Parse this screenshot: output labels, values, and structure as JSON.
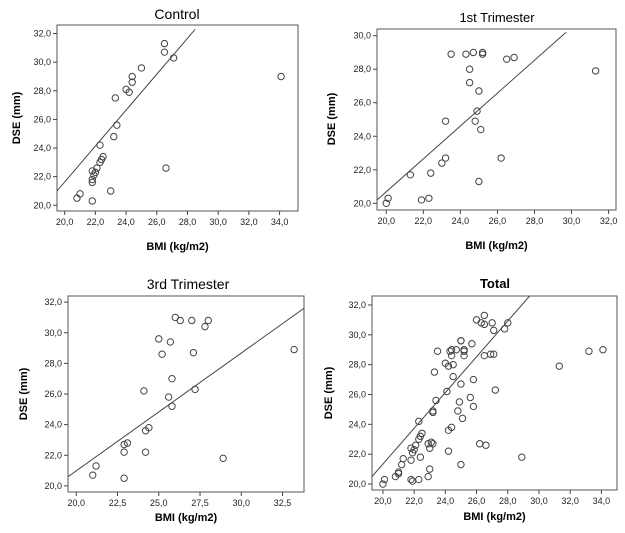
{
  "chart_data": [
    {
      "type": "scatter",
      "title": "Control",
      "xlabel": "BMI (kg/m2)",
      "ylabel": "DSE (mm)",
      "xlim": [
        19.5,
        35.2
      ],
      "ylim": [
        19.6,
        32.6
      ],
      "xticks": [
        "20,0",
        "22,0",
        "24,0",
        "26,0",
        "28,0",
        "30,0",
        "32,0",
        "34,0"
      ],
      "yticks": [
        "20,0",
        "22,0",
        "24,0",
        "26,0",
        "28,0",
        "30,0",
        "32,0"
      ],
      "fit_line": {
        "x": [
          19.5,
          28.5
        ],
        "y": [
          21.0,
          32.3
        ]
      },
      "points": [
        [
          20.8,
          20.5
        ],
        [
          21.0,
          20.8
        ],
        [
          21.8,
          20.3
        ],
        [
          21.8,
          21.6
        ],
        [
          21.8,
          21.8
        ],
        [
          21.9,
          22.1
        ],
        [
          21.8,
          22.4
        ],
        [
          22.0,
          22.3
        ],
        [
          22.1,
          22.6
        ],
        [
          22.3,
          23.0
        ],
        [
          22.4,
          23.2
        ],
        [
          22.5,
          23.4
        ],
        [
          22.3,
          24.2
        ],
        [
          23.0,
          21.0
        ],
        [
          23.2,
          24.8
        ],
        [
          23.4,
          25.6
        ],
        [
          23.3,
          27.5
        ],
        [
          24.0,
          28.1
        ],
        [
          24.2,
          27.9
        ],
        [
          24.4,
          28.6
        ],
        [
          24.4,
          29.0
        ],
        [
          25.0,
          29.6
        ],
        [
          26.5,
          31.3
        ],
        [
          26.5,
          30.7
        ],
        [
          27.1,
          30.3
        ],
        [
          26.6,
          22.6
        ],
        [
          34.1,
          29.0
        ]
      ],
      "title_style": "normal"
    },
    {
      "type": "scatter",
      "title": "1st Trimester",
      "xlabel": "BMI (kg/m2)",
      "ylabel": "DSE (mm)",
      "xlim": [
        19.5,
        32.4
      ],
      "ylim": [
        19.6,
        30.4
      ],
      "xticks": [
        "20,0",
        "22,0",
        "24,0",
        "26,0",
        "28,0",
        "30,0",
        "32,0"
      ],
      "yticks": [
        "20,0",
        "22,0",
        "24,0",
        "26,0",
        "28,0",
        "30,0"
      ],
      "fit_line": {
        "x": [
          19.5,
          29.7
        ],
        "y": [
          20.2,
          30.2
        ]
      },
      "points": [
        [
          20.0,
          20.0
        ],
        [
          20.1,
          20.3
        ],
        [
          21.3,
          21.7
        ],
        [
          21.9,
          20.2
        ],
        [
          22.3,
          20.3
        ],
        [
          22.4,
          21.8
        ],
        [
          23.0,
          22.4
        ],
        [
          23.2,
          22.7
        ],
        [
          23.2,
          24.9
        ],
        [
          23.5,
          28.9
        ],
        [
          24.3,
          28.9
        ],
        [
          24.5,
          28.0
        ],
        [
          24.5,
          27.2
        ],
        [
          24.7,
          29.0
        ],
        [
          24.9,
          25.5
        ],
        [
          24.8,
          24.9
        ],
        [
          25.0,
          26.7
        ],
        [
          25.1,
          24.4
        ],
        [
          25.2,
          28.9
        ],
        [
          25.2,
          29.0
        ],
        [
          25.0,
          21.3
        ],
        [
          26.2,
          22.7
        ],
        [
          26.5,
          28.6
        ],
        [
          26.9,
          28.7
        ],
        [
          31.3,
          27.9
        ]
      ],
      "title_style": "normal"
    },
    {
      "type": "scatter",
      "title": "3rd Trimester",
      "xlabel": "BMI (kg/m2)",
      "ylabel": "DSE (mm)",
      "xlim": [
        19.5,
        33.8
      ],
      "ylim": [
        19.6,
        32.4
      ],
      "xticks": [
        "20,0",
        "22,5",
        "25,0",
        "27,5",
        "30,0",
        "32,5"
      ],
      "yticks": [
        "20,0",
        "22,0",
        "24,0",
        "26,0",
        "28,0",
        "30,0",
        "32,0"
      ],
      "fit_line": {
        "x": [
          19.5,
          33.8
        ],
        "y": [
          20.6,
          31.6
        ]
      },
      "points": [
        [
          21.0,
          20.7
        ],
        [
          21.2,
          21.3
        ],
        [
          22.9,
          22.7
        ],
        [
          22.9,
          22.2
        ],
        [
          23.1,
          22.8
        ],
        [
          22.9,
          20.5
        ],
        [
          24.1,
          26.2
        ],
        [
          24.2,
          23.6
        ],
        [
          24.4,
          23.8
        ],
        [
          24.2,
          22.2
        ],
        [
          25.0,
          29.6
        ],
        [
          25.2,
          28.6
        ],
        [
          25.6,
          25.8
        ],
        [
          25.7,
          29.4
        ],
        [
          25.8,
          27.0
        ],
        [
          25.8,
          25.2
        ],
        [
          26.0,
          31.0
        ],
        [
          26.3,
          30.8
        ],
        [
          27.0,
          30.8
        ],
        [
          27.1,
          28.7
        ],
        [
          27.2,
          26.3
        ],
        [
          27.8,
          30.4
        ],
        [
          28.0,
          30.8
        ],
        [
          28.9,
          21.8
        ],
        [
          33.2,
          28.9
        ]
      ],
      "title_style": "normal"
    },
    {
      "type": "scatter",
      "title": "Total",
      "xlabel": "BMI (kg/m2)",
      "ylabel": "DSE (mm)",
      "xlim": [
        19.3,
        35.0
      ],
      "ylim": [
        19.6,
        32.6
      ],
      "xticks": [
        "20,0",
        "22,0",
        "24,0",
        "26,0",
        "28,0",
        "30,0",
        "32,0",
        "34,0"
      ],
      "yticks": [
        "20,0",
        "22,0",
        "24,0",
        "26,0",
        "28,0",
        "30,0",
        "32,0"
      ],
      "fit_line": {
        "x": [
          19.3,
          29.4
        ],
        "y": [
          20.5,
          32.6
        ]
      },
      "points": [
        [
          20.0,
          20.0
        ],
        [
          20.1,
          20.3
        ],
        [
          20.8,
          20.5
        ],
        [
          21.0,
          20.8
        ],
        [
          21.0,
          20.7
        ],
        [
          21.2,
          21.3
        ],
        [
          21.3,
          21.7
        ],
        [
          21.8,
          20.3
        ],
        [
          21.8,
          21.6
        ],
        [
          21.8,
          22.4
        ],
        [
          21.9,
          22.1
        ],
        [
          21.9,
          20.2
        ],
        [
          22.0,
          22.3
        ],
        [
          22.1,
          22.6
        ],
        [
          22.3,
          23.0
        ],
        [
          22.3,
          24.2
        ],
        [
          22.3,
          20.3
        ],
        [
          22.4,
          21.8
        ],
        [
          22.4,
          23.2
        ],
        [
          22.5,
          23.4
        ],
        [
          22.9,
          22.7
        ],
        [
          22.9,
          20.5
        ],
        [
          23.0,
          21.0
        ],
        [
          23.0,
          22.4
        ],
        [
          23.1,
          22.8
        ],
        [
          23.2,
          22.7
        ],
        [
          23.2,
          24.8
        ],
        [
          23.2,
          24.9
        ],
        [
          23.3,
          27.5
        ],
        [
          23.4,
          25.6
        ],
        [
          23.5,
          28.9
        ],
        [
          24.0,
          28.1
        ],
        [
          24.1,
          26.2
        ],
        [
          24.2,
          23.6
        ],
        [
          24.2,
          22.2
        ],
        [
          24.2,
          27.9
        ],
        [
          24.3,
          28.9
        ],
        [
          24.4,
          23.8
        ],
        [
          24.4,
          28.6
        ],
        [
          24.4,
          29.0
        ],
        [
          24.5,
          28.0
        ],
        [
          24.5,
          27.2
        ],
        [
          24.7,
          29.0
        ],
        [
          24.8,
          24.9
        ],
        [
          24.9,
          25.5
        ],
        [
          25.0,
          29.6
        ],
        [
          25.0,
          26.7
        ],
        [
          25.0,
          21.3
        ],
        [
          25.0,
          29.6
        ],
        [
          25.1,
          24.4
        ],
        [
          25.2,
          28.9
        ],
        [
          25.2,
          29.0
        ],
        [
          25.2,
          28.6
        ],
        [
          25.6,
          25.8
        ],
        [
          25.7,
          29.4
        ],
        [
          25.8,
          27.0
        ],
        [
          25.8,
          25.2
        ],
        [
          26.0,
          31.0
        ],
        [
          26.2,
          22.7
        ],
        [
          26.3,
          30.8
        ],
        [
          26.5,
          31.3
        ],
        [
          26.5,
          30.7
        ],
        [
          26.5,
          28.6
        ],
        [
          26.6,
          22.6
        ],
        [
          26.9,
          28.7
        ],
        [
          27.0,
          30.8
        ],
        [
          27.1,
          30.3
        ],
        [
          27.1,
          28.7
        ],
        [
          27.2,
          26.3
        ],
        [
          27.8,
          30.4
        ],
        [
          28.0,
          30.8
        ],
        [
          28.9,
          21.8
        ],
        [
          31.3,
          27.9
        ],
        [
          33.2,
          28.9
        ],
        [
          34.1,
          29.0
        ]
      ],
      "title_style": "bold"
    }
  ]
}
